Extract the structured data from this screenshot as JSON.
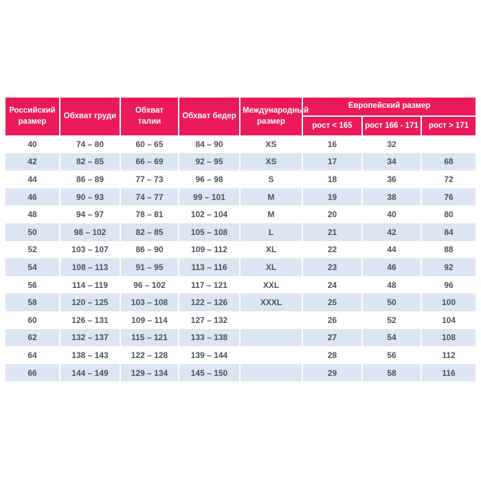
{
  "size_chart": {
    "headers": {
      "russian_size": "Российский размер",
      "chest": "Обхват груди",
      "waist": "Обхват талии",
      "hips": "Обхват бедер",
      "international_size": "Международный размер",
      "european_size": "Европейский размер",
      "height_lt_165": "рост < 165",
      "height_166_171": "рост 166 - 171",
      "height_gt_171": "рост > 171"
    },
    "rows": [
      [
        "40",
        "74 – 80",
        "60 – 65",
        "84 – 90",
        "XS",
        "16",
        "32",
        ""
      ],
      [
        "42",
        "82 – 85",
        "66 – 69",
        "92 – 95",
        "XS",
        "17",
        "34",
        "68"
      ],
      [
        "44",
        "86 – 89",
        "77 – 73",
        "96 – 98",
        "S",
        "18",
        "36",
        "72"
      ],
      [
        "46",
        "90 – 93",
        "74 – 77",
        "99 – 101",
        "M",
        "19",
        "38",
        "76"
      ],
      [
        "48",
        "94 – 97",
        "78 – 81",
        "102 – 104",
        "M",
        "20",
        "40",
        "80"
      ],
      [
        "50",
        "98 – 102",
        "82 – 85",
        "105 – 108",
        "L",
        "21",
        "42",
        "84"
      ],
      [
        "52",
        "103 – 107",
        "86 – 90",
        "109 – 112",
        "XL",
        "22",
        "44",
        "88"
      ],
      [
        "54",
        "108 – 113",
        "91 – 95",
        "113 – 116",
        "XL",
        "23",
        "46",
        "92"
      ],
      [
        "56",
        "114 – 119",
        "96 – 102",
        "117 – 121",
        "XXL",
        "24",
        "48",
        "96"
      ],
      [
        "58",
        "120 – 125",
        "103 – 108",
        "122 – 126",
        "XXXL",
        "25",
        "50",
        "100"
      ],
      [
        "60",
        "126 – 131",
        "109 – 114",
        "127 – 132",
        "",
        "26",
        "52",
        "104"
      ],
      [
        "62",
        "132 – 137",
        "115 – 121",
        "133 – 138",
        "",
        "27",
        "54",
        "108"
      ],
      [
        "64",
        "138 – 143",
        "122 – 128",
        "139 – 144",
        "",
        "28",
        "56",
        "112"
      ],
      [
        "66",
        "144 – 149",
        "129 – 134",
        "145 – 150",
        "",
        "29",
        "58",
        "116"
      ]
    ],
    "colors": {
      "header_bg": "#EC1A5B",
      "header_text": "#FFFFFF",
      "alt_row_bg": "#DBE6F2",
      "body_text": "#4C525C"
    }
  }
}
